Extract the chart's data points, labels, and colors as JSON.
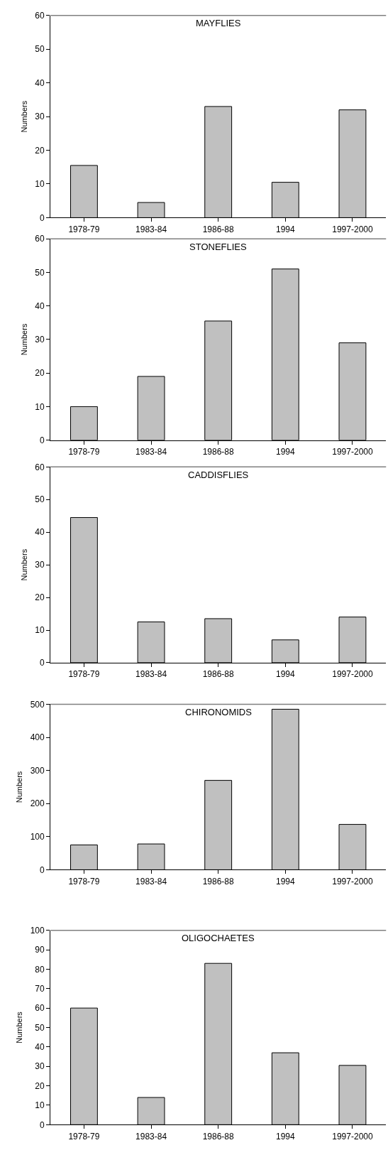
{
  "chart_data": [
    {
      "type": "bar",
      "title": "MAYFLIES",
      "ylabel": "Numbers",
      "categories": [
        "1978-79",
        "1983-84",
        "1986-88",
        "1994",
        "1997-2000"
      ],
      "values": [
        15.5,
        4.5,
        33,
        10.5,
        32
      ],
      "color": "#c0c0c0",
      "ylim": [
        0,
        60
      ],
      "yticks": [
        0,
        10,
        20,
        30,
        40,
        50,
        60
      ]
    },
    {
      "type": "bar",
      "title": "STONEFLIES",
      "ylabel": "Numbers",
      "categories": [
        "1978-79",
        "1983-84",
        "1986-88",
        "1994",
        "1997-2000"
      ],
      "values": [
        10,
        19,
        35.5,
        51,
        29
      ],
      "color": "#c0c0c0",
      "ylim": [
        0,
        60
      ],
      "yticks": [
        0,
        10,
        20,
        30,
        40,
        50,
        60
      ]
    },
    {
      "type": "bar",
      "title": "CADDISFLIES",
      "ylabel": "Numbers",
      "categories": [
        "1978-79",
        "1983-84",
        "1986-88",
        "1994",
        "1997-2000"
      ],
      "values": [
        44.5,
        12.5,
        13.5,
        7,
        14
      ],
      "color": "#c0c0c0",
      "ylim": [
        0,
        60
      ],
      "yticks": [
        0,
        10,
        20,
        30,
        40,
        50,
        60
      ]
    },
    {
      "type": "bar",
      "title": "CHIRONOMIDS",
      "ylabel": "Numbers",
      "categories": [
        "1978-79",
        "1983-84",
        "1986-88",
        "1994",
        "1997-2000"
      ],
      "values": [
        75,
        78,
        270,
        485,
        137
      ],
      "color": "#c0c0c0",
      "ylim": [
        0,
        500
      ],
      "yticks": [
        0,
        100,
        200,
        300,
        400,
        500
      ]
    },
    {
      "type": "bar",
      "title": "OLIGOCHAETES",
      "ylabel": "Numbers",
      "categories": [
        "1978-79",
        "1983-84",
        "1986-88",
        "1994",
        "1997-2000"
      ],
      "values": [
        60,
        14,
        83,
        37,
        30.5
      ],
      "color": "#c0c0c0",
      "ylim": [
        0,
        100
      ],
      "yticks": [
        0,
        10,
        20,
        30,
        40,
        50,
        60,
        70,
        80,
        90,
        100
      ]
    }
  ]
}
